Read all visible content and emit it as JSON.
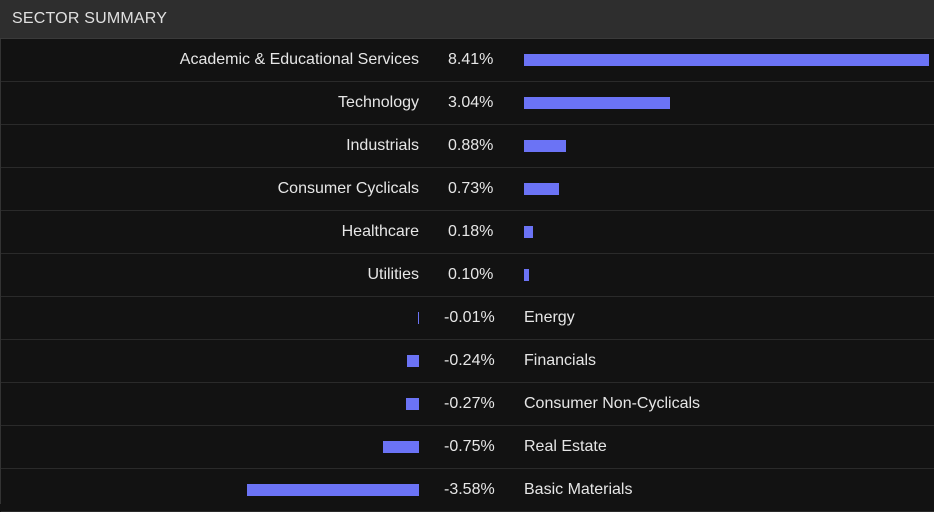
{
  "header": {
    "title": "SECTOR SUMMARY"
  },
  "colors": {
    "bar": "#6b73f5"
  },
  "chart_data": {
    "type": "bar",
    "orientation": "horizontal",
    "title": "SECTOR SUMMARY",
    "unit": "%",
    "categories": [
      "Academic & Educational Services",
      "Technology",
      "Industrials",
      "Consumer Cyclicals",
      "Healthcare",
      "Utilities",
      "Energy",
      "Financials",
      "Consumer Non-Cyclicals",
      "Real Estate",
      "Basic Materials"
    ],
    "values": [
      8.41,
      3.04,
      0.88,
      0.73,
      0.18,
      0.1,
      -0.01,
      -0.24,
      -0.27,
      -0.75,
      -3.58
    ],
    "value_labels": [
      "8.41%",
      "3.04%",
      "0.88%",
      "0.73%",
      "0.18%",
      "0.10%",
      "-0.01%",
      "-0.24%",
      "-0.27%",
      "-0.75%",
      "-3.58%"
    ]
  }
}
